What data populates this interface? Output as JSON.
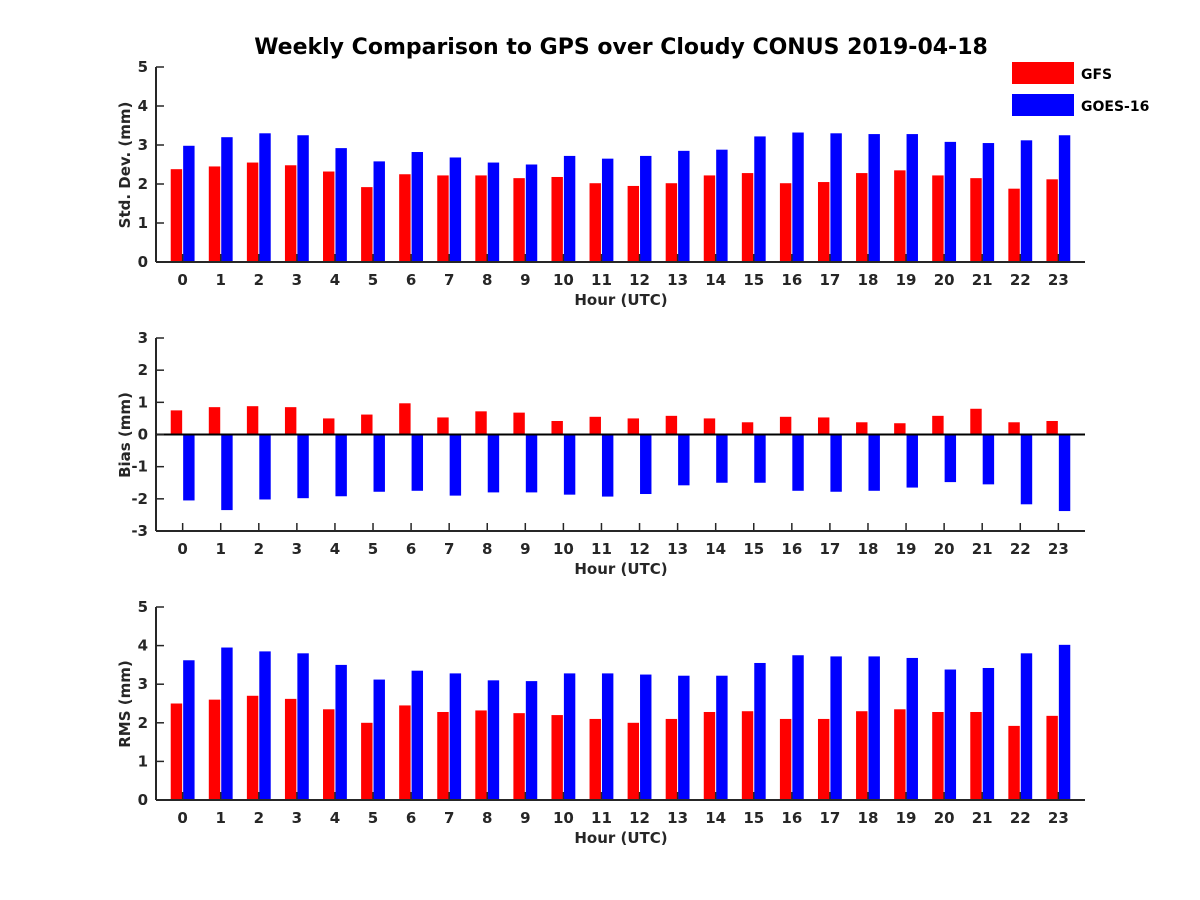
{
  "title": "Weekly Comparison to GPS over Cloudy CONUS 2019-04-18",
  "colors": {
    "GFS": "#ff0000",
    "GOES-16": "#0000ff",
    "axis": "#262626"
  },
  "legend": {
    "placement": "top-right",
    "entries": [
      "GFS",
      "GOES-16"
    ]
  },
  "chart_data": [
    {
      "type": "bar",
      "title": "Weekly Comparison to GPS over Cloudy CONUS 2019-04-18",
      "xlabel": "Hour (UTC)",
      "ylabel": "Std. Dev. (mm)",
      "ylim": [
        0,
        5
      ],
      "yticks": [
        "0",
        "1",
        "2",
        "3",
        "4",
        "5"
      ],
      "categories": [
        "0",
        "1",
        "2",
        "3",
        "4",
        "5",
        "6",
        "7",
        "8",
        "9",
        "10",
        "11",
        "12",
        "13",
        "14",
        "15",
        "16",
        "17",
        "18",
        "19",
        "20",
        "21",
        "22",
        "23"
      ],
      "series": [
        {
          "name": "GFS",
          "values": [
            2.38,
            2.45,
            2.55,
            2.48,
            2.32,
            1.92,
            2.25,
            2.22,
            2.22,
            2.15,
            2.18,
            2.02,
            1.95,
            2.02,
            2.22,
            2.28,
            2.02,
            2.05,
            2.28,
            2.35,
            2.22,
            2.15,
            1.88,
            2.12
          ]
        },
        {
          "name": "GOES-16",
          "values": [
            2.98,
            3.2,
            3.3,
            3.25,
            2.92,
            2.58,
            2.82,
            2.68,
            2.55,
            2.5,
            2.72,
            2.65,
            2.72,
            2.85,
            2.88,
            3.22,
            3.32,
            3.3,
            3.28,
            3.28,
            3.08,
            3.05,
            3.12,
            3.25
          ]
        }
      ]
    },
    {
      "type": "bar",
      "xlabel": "Hour (UTC)",
      "ylabel": "Bias (mm)",
      "ylim": [
        -3,
        3
      ],
      "yticks": [
        "-3",
        "-2",
        "-1",
        "0",
        "1",
        "2",
        "3"
      ],
      "categories": [
        "0",
        "1",
        "2",
        "3",
        "4",
        "5",
        "6",
        "7",
        "8",
        "9",
        "10",
        "11",
        "12",
        "13",
        "14",
        "15",
        "16",
        "17",
        "18",
        "19",
        "20",
        "21",
        "22",
        "23"
      ],
      "series": [
        {
          "name": "GFS",
          "values": [
            0.75,
            0.85,
            0.88,
            0.85,
            0.5,
            0.62,
            0.97,
            0.53,
            0.72,
            0.68,
            0.42,
            0.55,
            0.5,
            0.58,
            0.5,
            0.38,
            0.55,
            0.53,
            0.38,
            0.35,
            0.58,
            0.8,
            0.38,
            0.42
          ]
        },
        {
          "name": "GOES-16",
          "values": [
            -2.05,
            -2.35,
            -2.02,
            -1.98,
            -1.92,
            -1.78,
            -1.75,
            -1.9,
            -1.8,
            -1.8,
            -1.87,
            -1.93,
            -1.85,
            -1.58,
            -1.5,
            -1.5,
            -1.75,
            -1.78,
            -1.75,
            -1.65,
            -1.48,
            -1.55,
            -2.17,
            -2.38
          ]
        }
      ]
    },
    {
      "type": "bar",
      "xlabel": "Hour (UTC)",
      "ylabel": "RMS (mm)",
      "ylim": [
        0,
        5
      ],
      "yticks": [
        "0",
        "1",
        "2",
        "3",
        "4",
        "5"
      ],
      "categories": [
        "0",
        "1",
        "2",
        "3",
        "4",
        "5",
        "6",
        "7",
        "8",
        "9",
        "10",
        "11",
        "12",
        "13",
        "14",
        "15",
        "16",
        "17",
        "18",
        "19",
        "20",
        "21",
        "22",
        "23"
      ],
      "series": [
        {
          "name": "GFS",
          "values": [
            2.5,
            2.6,
            2.7,
            2.62,
            2.35,
            2.0,
            2.45,
            2.28,
            2.32,
            2.25,
            2.2,
            2.1,
            2.0,
            2.1,
            2.28,
            2.3,
            2.1,
            2.1,
            2.3,
            2.35,
            2.28,
            2.28,
            1.92,
            2.18
          ]
        },
        {
          "name": "GOES-16",
          "values": [
            3.62,
            3.95,
            3.85,
            3.8,
            3.5,
            3.12,
            3.35,
            3.28,
            3.1,
            3.08,
            3.28,
            3.28,
            3.25,
            3.22,
            3.22,
            3.55,
            3.75,
            3.72,
            3.72,
            3.68,
            3.38,
            3.42,
            3.8,
            4.02
          ]
        }
      ]
    }
  ]
}
